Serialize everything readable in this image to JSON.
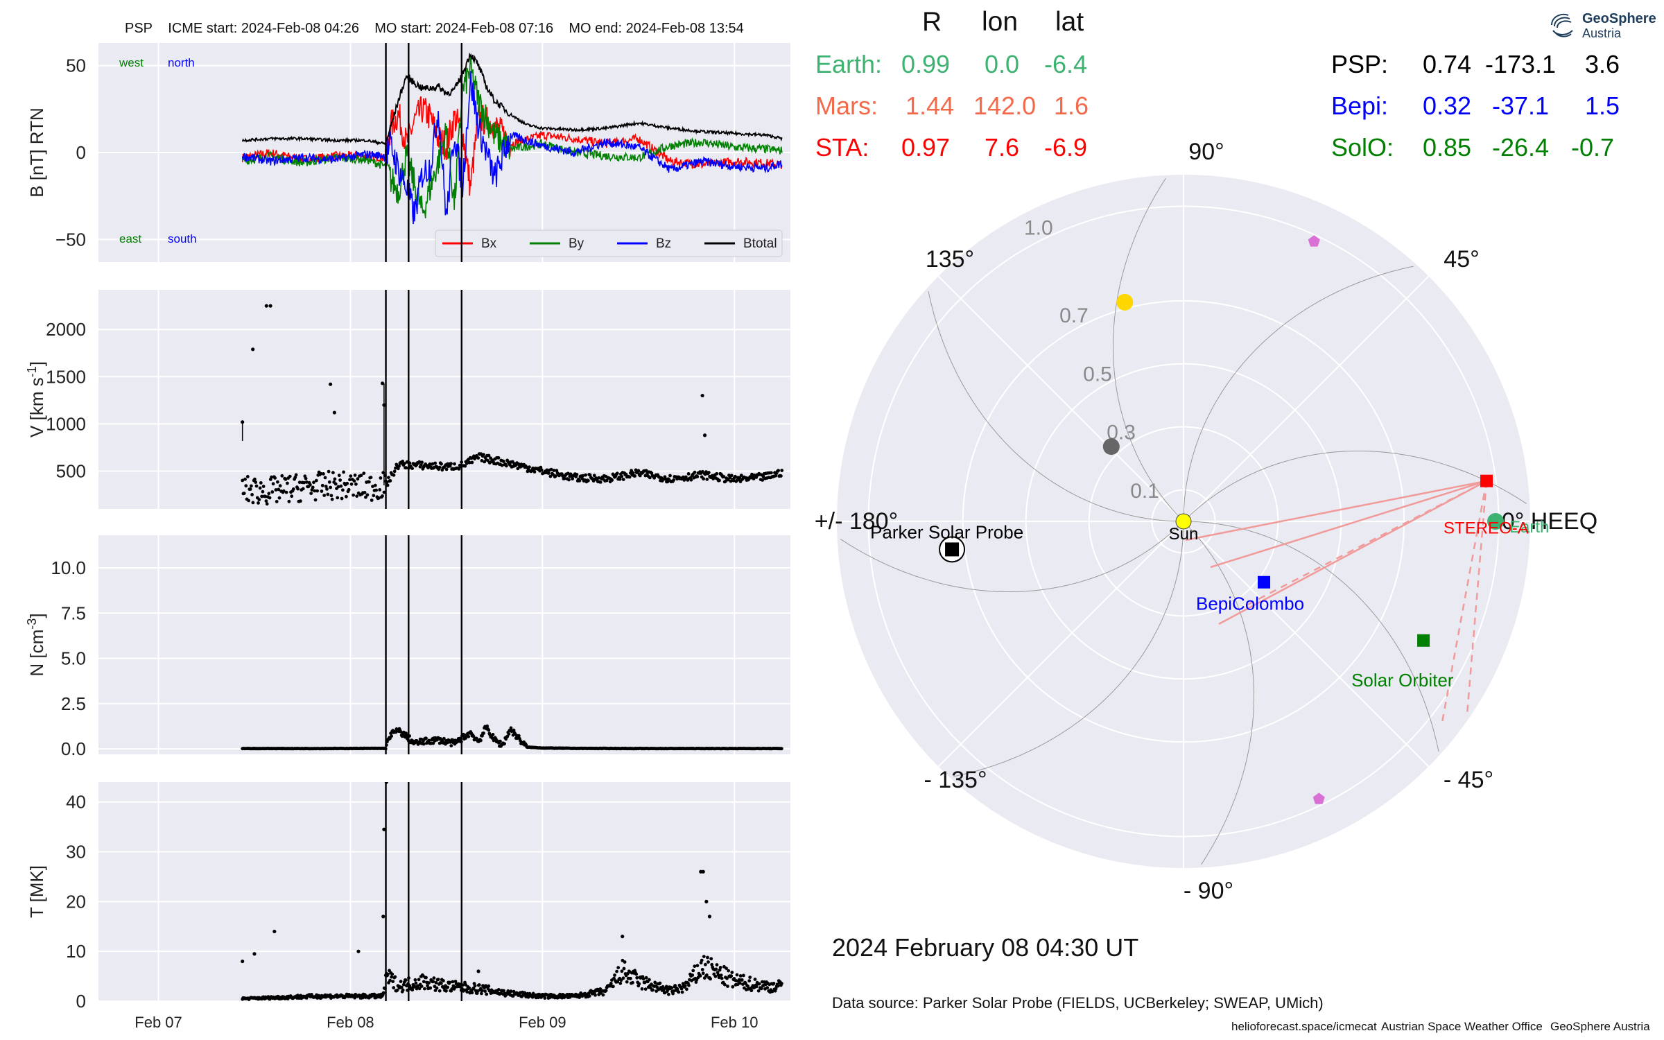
{
  "header": {
    "spacecraft": "PSP",
    "icme_start": "ICME start: 2024-Feb-08 04:26",
    "mo_start": "MO start: 2024-Feb-08 07:16",
    "mo_end": "MO end: 2024-Feb-08 13:54"
  },
  "position_table": {
    "columns": [
      "R",
      "lon",
      "lat"
    ],
    "left": [
      {
        "name": "Earth:",
        "r": "0.99",
        "lon": "0.0",
        "lat": "-6.4",
        "color": "#3cb371"
      },
      {
        "name": "Mars:",
        "r": "1.44",
        "lon": "142.0",
        "lat": "1.6",
        "color": "#f4694a"
      },
      {
        "name": "STA:",
        "r": "0.97",
        "lon": "7.6",
        "lat": "-6.9",
        "color": "#ff0000"
      }
    ],
    "right": [
      {
        "name": "PSP:",
        "r": "0.74",
        "lon": "-173.1",
        "lat": "3.6",
        "color": "#000000"
      },
      {
        "name": "Bepi:",
        "r": "0.32",
        "lon": "-37.1",
        "lat": "1.5",
        "color": "#0000ff"
      },
      {
        "name": "SolO:",
        "r": "0.85",
        "lon": "-26.4",
        "lat": "-0.7",
        "color": "#008000"
      }
    ]
  },
  "logo": {
    "name": "GeoSphere",
    "sub": "Austria"
  },
  "date_label": "2024 February 08  04:30 UT",
  "data_source": "Data source: Parker Solar Probe (FIELDS, UCBerkeley; SWEAP, UMich)",
  "footer": [
    "helioforecast.space/icmecat",
    "Austrian Space Weather Office",
    "GeoSphere Austria"
  ],
  "colors": {
    "panel_bg": "#eaeaf2",
    "grid": "#ffffff",
    "bx": "#ff0000",
    "by": "#008000",
    "bz": "#0000ff",
    "btot": "#000000"
  },
  "chart_data": [
    {
      "type": "line",
      "ylabel": "B [nT] RTN",
      "ylim": [
        -63,
        63
      ],
      "yticks": [
        "50",
        "0",
        "−50"
      ],
      "ytick_values": [
        50,
        0,
        -50
      ],
      "grid": true,
      "corner_labels": {
        "top_left": "west",
        "top_right": "north",
        "bottom_left": "east",
        "bottom_right": "south"
      },
      "legend": {
        "placement": "lower-right",
        "entries": [
          "Bx",
          "By",
          "Bz",
          "Btotal"
        ]
      },
      "vlines": [
        "Feb 08 04:26",
        "Feb 08 07:16",
        "Feb 08 13:54"
      ],
      "x_unit": "hours since Feb 07 00:00",
      "series": [
        {
          "name": "Btotal",
          "x": [
            10.5,
            14,
            18,
            22,
            26,
            28.4,
            30,
            31,
            32,
            33,
            34,
            35,
            36,
            37,
            38,
            39,
            40,
            41,
            42,
            44,
            46,
            48,
            52,
            56,
            60,
            64,
            68,
            72,
            76,
            78
          ],
          "y": [
            7,
            8,
            8,
            7,
            7,
            5,
            30,
            44,
            40,
            37,
            37,
            38,
            34,
            36,
            45,
            57,
            50,
            38,
            30,
            22,
            16,
            14,
            13,
            14,
            17,
            14,
            12,
            11,
            10,
            8
          ]
        },
        {
          "name": "Bx",
          "x": [
            10.5,
            14,
            18,
            22,
            26,
            28.4,
            29,
            30,
            31,
            32,
            33,
            34,
            35,
            36,
            37,
            38,
            39,
            40,
            42,
            44,
            48,
            52,
            56,
            60,
            64,
            68,
            72,
            76,
            78
          ],
          "y": [
            -3,
            0,
            -4,
            -2,
            -2,
            -3,
            15,
            22,
            5,
            18,
            25,
            20,
            8,
            4,
            20,
            12,
            -20,
            20,
            16,
            5,
            10,
            8,
            5,
            8,
            -5,
            -7,
            -5,
            -6,
            -7
          ]
        },
        {
          "name": "By",
          "x": [
            10.5,
            14,
            18,
            22,
            26,
            28.4,
            29,
            30,
            31,
            32,
            33,
            34,
            35,
            36,
            37,
            38,
            39,
            40,
            42,
            44,
            48,
            52,
            56,
            60,
            64,
            68,
            72,
            76,
            78
          ],
          "y": [
            -5,
            -2,
            -6,
            -3,
            -4,
            -8,
            -15,
            -22,
            -2,
            -18,
            -35,
            -20,
            -5,
            12,
            -30,
            35,
            48,
            30,
            10,
            2,
            5,
            0,
            -2,
            -3,
            4,
            6,
            3,
            2,
            1
          ]
        },
        {
          "name": "Bz",
          "x": [
            10.5,
            14,
            18,
            22,
            26,
            28.4,
            29,
            30,
            31,
            32,
            33,
            34,
            35,
            36,
            37,
            38,
            39,
            40,
            42,
            44,
            48,
            52,
            56,
            60,
            64,
            68,
            72,
            76,
            78
          ],
          "y": [
            -2,
            -5,
            -3,
            -4,
            -1,
            -2,
            5,
            -10,
            -20,
            -36,
            -12,
            -8,
            25,
            -38,
            12,
            -20,
            42,
            15,
            -15,
            10,
            4,
            0,
            6,
            3,
            -10,
            -5,
            -8,
            -9,
            -6
          ]
        }
      ]
    },
    {
      "type": "scatter",
      "ylabel": "V [km s^-1]",
      "yticks": [
        "2000",
        "1500",
        "1000",
        "500"
      ],
      "ytick_values": [
        2000,
        1500,
        1000,
        500
      ],
      "ylim": [
        100,
        2420
      ],
      "grid": true,
      "vlines": [
        "Feb 08 04:26",
        "Feb 08 07:16",
        "Feb 08 13:54"
      ],
      "outliers": [
        [
          13.5,
          2250
        ],
        [
          14,
          2250
        ],
        [
          11.8,
          1790
        ],
        [
          21.5,
          1420
        ],
        [
          22,
          1120
        ],
        [
          10.5,
          1020
        ],
        [
          28,
          1430
        ],
        [
          28.2,
          1200
        ],
        [
          68,
          1300
        ],
        [
          68.3,
          880
        ]
      ],
      "trend_x": [
        10.5,
        14,
        18,
        22,
        26,
        28.4,
        30,
        33,
        36,
        38,
        40,
        44,
        48,
        52,
        56,
        60,
        64,
        68,
        72,
        76,
        78
      ],
      "trend_y": [
        300,
        290,
        330,
        350,
        330,
        350,
        570,
        560,
        545,
        560,
        650,
        580,
        500,
        430,
        420,
        480,
        420,
        460,
        410,
        440,
        490
      ]
    },
    {
      "type": "scatter",
      "ylabel": "N [cm^-3]",
      "yticks": [
        "10.0",
        "7.5",
        "5.0",
        "2.5",
        "0.0"
      ],
      "ytick_values": [
        10,
        7.5,
        5,
        2.5,
        0
      ],
      "ylim": [
        -0.3,
        11.8
      ],
      "grid": true,
      "vlines": [
        "Feb 08 04:26",
        "Feb 08 07:16",
        "Feb 08 13:54"
      ],
      "trend_x": [
        10.5,
        20,
        28.4,
        29,
        30,
        31,
        32,
        33,
        35,
        37,
        38,
        39,
        40,
        41,
        42,
        43,
        44,
        46,
        48,
        52,
        60,
        70,
        78
      ],
      "trend_y": [
        0.02,
        0.02,
        0.03,
        0.8,
        1.0,
        0.7,
        0.3,
        0.4,
        0.5,
        0.3,
        0.6,
        0.9,
        0.4,
        1.2,
        0.5,
        0.2,
        1.1,
        0.1,
        0.05,
        0.03,
        0.02,
        0.02,
        0.02
      ]
    },
    {
      "type": "scatter",
      "ylabel": "T [MK]",
      "yticks": [
        "40",
        "30",
        "20",
        "10",
        "0"
      ],
      "ytick_values": [
        40,
        30,
        20,
        10,
        0
      ],
      "ylim": [
        0,
        44
      ],
      "grid": true,
      "xticks": [
        "Feb 07",
        "Feb 08",
        "Feb 09",
        "Feb 10"
      ],
      "xtick_values": [
        0,
        24,
        48,
        72
      ],
      "xlim": [
        -7.5,
        79
      ],
      "vlines": [
        "Feb 08 04:26",
        "Feb 08 07:16",
        "Feb 08 13:54"
      ],
      "outliers": [
        [
          14.5,
          14
        ],
        [
          12,
          9.5
        ],
        [
          10.5,
          8
        ],
        [
          25,
          10
        ],
        [
          28.2,
          34.5
        ],
        [
          28.1,
          17
        ],
        [
          28.5,
          44
        ],
        [
          67.8,
          26
        ],
        [
          68.1,
          26
        ],
        [
          68.5,
          20
        ],
        [
          68.9,
          17
        ],
        [
          58,
          13
        ],
        [
          40,
          6
        ]
      ],
      "trend_x": [
        10.5,
        20,
        28,
        28.6,
        30,
        33,
        36,
        40,
        44,
        48,
        52,
        56,
        58,
        60,
        64,
        66,
        68,
        72,
        76,
        78
      ],
      "trend_y": [
        0.5,
        1,
        1,
        5,
        3,
        4,
        3,
        2.5,
        1.5,
        1,
        1,
        2,
        6,
        4,
        2,
        3,
        7,
        4,
        3,
        3
      ]
    },
    {
      "type": "polar",
      "radial_ticks": [
        "0.1",
        "0.3",
        "0.5",
        "0.7",
        "1.0"
      ],
      "radial_values": [
        0.1,
        0.3,
        0.5,
        0.7,
        1.0
      ],
      "rmax": 1.1,
      "angle_labels": [
        "90°",
        "45°",
        "0° HEEQ",
        "- 45°",
        "- 90°",
        "- 135°",
        "+/- 180°",
        "135°"
      ],
      "angle_values": [
        90,
        45,
        0,
        -45,
        -90,
        -135,
        180,
        135
      ],
      "objects": [
        {
          "name": "Sun",
          "label": "Sun",
          "r": 0,
          "lon": 0,
          "color": "#ffff00",
          "marker": "circle"
        },
        {
          "name": "Earth",
          "label": "Earth",
          "r": 0.99,
          "lon": 0,
          "color": "#3cb371",
          "marker": "circle"
        },
        {
          "name": "STEREO-A",
          "label": "STEREO-A",
          "r": 0.97,
          "lon": 7.6,
          "color": "#ff0000",
          "marker": "square"
        },
        {
          "name": "BepiColombo",
          "label": "BepiColombo",
          "r": 0.32,
          "lon": -37.1,
          "color": "#0000ff",
          "marker": "square"
        },
        {
          "name": "Solar Orbiter",
          "label": "Solar Orbiter",
          "r": 0.85,
          "lon": -26.4,
          "color": "#008000",
          "marker": "square"
        },
        {
          "name": "Parker Solar Probe",
          "label": "Parker Solar Probe",
          "r": 0.74,
          "lon": -173.1,
          "color": "#000000",
          "marker": "square-circled"
        },
        {
          "name": "Mercury",
          "label": "",
          "r": 0.33,
          "lon": 134,
          "color": "#666666",
          "marker": "circle"
        },
        {
          "name": "Venus",
          "label": "",
          "r": 0.72,
          "lon": 105,
          "color": "#ffd700",
          "marker": "circle"
        },
        {
          "name": "Comet-1",
          "label": "",
          "r": 0.98,
          "lon": 65,
          "color": "#da70d6",
          "marker": "pentagon"
        },
        {
          "name": "Comet-2",
          "label": "",
          "r": 0.98,
          "lon": -64,
          "color": "#da70d6",
          "marker": "pentagon"
        }
      ],
      "spiral_v": 600
    }
  ]
}
